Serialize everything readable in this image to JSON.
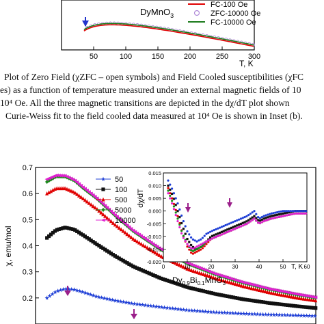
{
  "caption": {
    "line1": "Plot of Zero Field (χZFC – open symbols) and Field Cooled susceptibilities (χFC",
    "line2": "es) as a function of temperature measured under an external magnetic fields of 10",
    "line3": "10⁴ Oe. All the three magnetic transitions are depicted in the dχ/dT plot shown",
    "line4": "Curie-Weiss fit to the field cooled data measured at 10⁴ Oe is shown in Inset (b)."
  },
  "chart_data": [
    {
      "type": "line",
      "title": "DyMnO3",
      "xlabel": "T, K",
      "ylabel": "",
      "xlim": [
        0,
        300
      ],
      "xticks": [
        "50",
        "100",
        "150",
        "200",
        "250",
        "300"
      ],
      "legend": {
        "placement": "right",
        "entries": [
          "FC-100 Oe",
          "ZFC-10000 Oe",
          "FC-10000 Oe"
        ]
      },
      "series": [
        {
          "name": "FC-100 Oe",
          "color": "#e00000",
          "marker": "line",
          "x": []
        },
        {
          "name": "ZFC-10000 Oe",
          "color": "#b08ad8",
          "marker": "open-circle"
        },
        {
          "name": "FC-10000 Oe",
          "color": "#1a7a1a",
          "marker": "line"
        }
      ],
      "annotation_arrow_x": 40
    },
    {
      "type": "scatter",
      "title": "Dy0.9Bi0.1MnO3",
      "xlabel": "",
      "ylabel": "χ, emu/mol",
      "xlim": [
        0,
        300
      ],
      "ylim": [
        0.1,
        0.7
      ],
      "yticks": [
        "0.2",
        "0.3",
        "0.4",
        "0.5",
        "0.6",
        "0.7"
      ],
      "legend": {
        "placement": "top-center",
        "entries": [
          {
            "label": "50",
            "color": "#1f3fd6",
            "marker": "star"
          },
          {
            "label": "100",
            "color": "#111111",
            "marker": "square"
          },
          {
            "label": "500",
            "color": "#e00000",
            "marker": "triangle"
          },
          {
            "label": "5000",
            "color": "#1a8a1a",
            "marker": "diamond"
          },
          {
            "label": "10000",
            "color": "#e020d0",
            "marker": "triangle-left"
          }
        ]
      },
      "series": [
        {
          "name": "50",
          "x": [
            5,
            15,
            25,
            35,
            45,
            60,
            80,
            100,
            130,
            160,
            190,
            220,
            250,
            280,
            300
          ],
          "values": [
            0.2,
            0.225,
            0.235,
            0.232,
            0.222,
            0.205,
            0.19,
            0.178,
            0.165,
            0.153,
            0.145,
            0.14,
            0.136,
            0.133,
            0.131
          ]
        },
        {
          "name": "100",
          "x": [
            5,
            15,
            25,
            35,
            45,
            60,
            80,
            100,
            130,
            160,
            190,
            220,
            250,
            280,
            300
          ],
          "values": [
            0.43,
            0.46,
            0.47,
            0.462,
            0.44,
            0.405,
            0.36,
            0.32,
            0.275,
            0.24,
            0.215,
            0.195,
            0.18,
            0.168,
            0.161
          ]
        },
        {
          "name": "500",
          "x": [
            5,
            15,
            25,
            35,
            45,
            60,
            80,
            100,
            130,
            160,
            190,
            220,
            250,
            280,
            300
          ],
          "values": [
            0.6,
            0.62,
            0.62,
            0.605,
            0.58,
            0.54,
            0.48,
            0.425,
            0.36,
            0.31,
            0.275,
            0.245,
            0.22,
            0.2,
            0.19
          ]
        },
        {
          "name": "5000",
          "x": [
            5,
            15,
            25,
            35,
            45,
            60,
            80,
            100,
            130,
            160,
            190,
            220,
            250,
            280,
            300
          ],
          "values": [
            0.645,
            0.665,
            0.665,
            0.65,
            0.62,
            0.58,
            0.515,
            0.455,
            0.385,
            0.33,
            0.29,
            0.258,
            0.232,
            0.212,
            0.2
          ]
        },
        {
          "name": "10000",
          "x": [
            5,
            15,
            25,
            35,
            45,
            60,
            80,
            100,
            130,
            160,
            190,
            220,
            250,
            280,
            300
          ],
          "values": [
            0.655,
            0.67,
            0.668,
            0.652,
            0.623,
            0.582,
            0.517,
            0.457,
            0.387,
            0.332,
            0.292,
            0.26,
            0.234,
            0.214,
            0.202
          ]
        }
      ],
      "annotation_arrows_x": [
        25,
        160
      ]
    },
    {
      "type": "line",
      "title": "inset",
      "xlabel": "T, K",
      "ylabel": "dχ/dT",
      "xlim": [
        0,
        60
      ],
      "ylim": [
        -0.02,
        0.015
      ],
      "xticks": [
        "0",
        "10",
        "20",
        "30",
        "40",
        "50",
        "60"
      ],
      "yticks": [
        "0.015",
        "0.010",
        "0.005",
        "0.000",
        "-0.005",
        "-0.010",
        "-0.015",
        "-0.020"
      ],
      "series": [
        {
          "name": "50",
          "x": [
            2,
            4,
            6,
            8,
            10,
            12,
            14,
            16,
            18,
            20,
            25,
            30,
            35,
            38,
            40,
            42,
            45,
            50,
            55,
            60
          ],
          "values": [
            0.012,
            0.008,
            0.003,
            -0.003,
            -0.008,
            -0.011,
            -0.012,
            -0.011,
            -0.009,
            -0.008,
            -0.006,
            -0.004,
            -0.002,
            0.0,
            -0.003,
            -0.002,
            -0.001,
            0.0,
            0.0,
            0.0
          ]
        },
        {
          "name": "100",
          "x": [
            2,
            4,
            6,
            8,
            10,
            12,
            14,
            16,
            18,
            20,
            25,
            30,
            35,
            38,
            40,
            42,
            45,
            50,
            55,
            60
          ],
          "values": [
            0.01,
            0.006,
            0.0,
            -0.006,
            -0.011,
            -0.014,
            -0.015,
            -0.014,
            -0.012,
            -0.01,
            -0.008,
            -0.006,
            -0.004,
            -0.002,
            -0.004,
            -0.003,
            -0.002,
            -0.001,
            0.0,
            0.0
          ]
        },
        {
          "name": "500",
          "x": [
            2,
            4,
            6,
            8,
            10,
            12,
            14,
            16,
            18,
            20,
            25,
            30,
            35,
            38,
            40,
            42,
            45,
            50,
            55,
            60
          ],
          "values": [
            0.009,
            0.004,
            -0.002,
            -0.009,
            -0.014,
            -0.017,
            -0.016,
            -0.015,
            -0.013,
            -0.011,
            -0.009,
            -0.007,
            -0.005,
            -0.003,
            -0.005,
            -0.004,
            -0.003,
            -0.002,
            -0.001,
            -0.001
          ]
        },
        {
          "name": "5000",
          "x": [
            2,
            4,
            6,
            8,
            10,
            12,
            14,
            16,
            18,
            20,
            25,
            30,
            35,
            38,
            40,
            42,
            45,
            50,
            55,
            60
          ],
          "values": [
            0.008,
            0.003,
            -0.003,
            -0.009,
            -0.013,
            -0.016,
            -0.015,
            -0.014,
            -0.012,
            -0.011,
            -0.009,
            -0.007,
            -0.005,
            -0.003,
            -0.005,
            -0.004,
            -0.003,
            -0.002,
            -0.001,
            -0.001
          ]
        },
        {
          "name": "10000",
          "x": [
            2,
            4,
            6,
            8,
            10,
            12,
            14,
            16,
            18,
            20,
            25,
            30,
            35,
            38,
            40,
            42,
            45,
            50,
            55,
            60
          ],
          "values": [
            0.007,
            0.002,
            -0.004,
            -0.01,
            -0.013,
            -0.015,
            -0.014,
            -0.013,
            -0.012,
            -0.011,
            -0.009,
            -0.007,
            -0.005,
            -0.003,
            -0.005,
            -0.004,
            -0.003,
            -0.002,
            -0.001,
            -0.001
          ]
        }
      ],
      "annotation_arrows_x": [
        15,
        39
      ]
    }
  ],
  "top_chart": {
    "title_main": "DyMnO",
    "title_sub": "3",
    "xlabel": "T, K",
    "ticks": [
      "50",
      "100",
      "150",
      "200",
      "250",
      "300"
    ],
    "legend": [
      "FC-100 Oe",
      "ZFC-10000 Oe",
      "FC-10000 Oe"
    ]
  },
  "bottom_chart": {
    "ylabel": "χ, emu/mol",
    "yticks": [
      "0.7",
      "0.6",
      "0.5",
      "0.4",
      "0.3",
      "0.2"
    ],
    "legend": [
      "50",
      "100",
      "500",
      "5000",
      "10000"
    ],
    "inset_ylabel": "dχ/dT",
    "inset_xlabel": "T, K",
    "inset_yticks": [
      "0.015",
      "0.010",
      "0.005",
      "0.000",
      "-0.005",
      "-0.010",
      "-0.015",
      "-0.020"
    ],
    "inset_xticks": [
      "0",
      "10",
      "20",
      "30",
      "40",
      "50",
      "60"
    ],
    "sample_a": "Dy",
    "sample_a_sub": "0.9",
    "sample_b": "Bi",
    "sample_b_sub": "0.1",
    "sample_c": "MnO",
    "sample_c_sub": "3"
  }
}
